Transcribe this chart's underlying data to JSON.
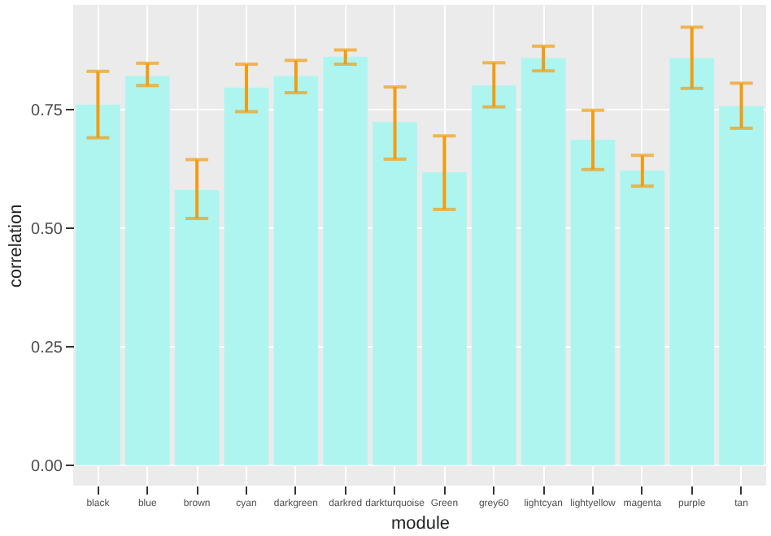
{
  "chart_data": {
    "type": "bar",
    "xlabel": "module",
    "ylabel": "correlation",
    "categories": [
      "black",
      "blue",
      "brown",
      "cyan",
      "darkgreen",
      "darkred",
      "darkturquoise",
      "Green",
      "grey60",
      "lightcyan",
      "lightyellow",
      "magenta",
      "purple",
      "tan"
    ],
    "values": [
      0.76,
      0.82,
      0.58,
      0.796,
      0.82,
      0.861,
      0.723,
      0.617,
      0.8,
      0.858,
      0.686,
      0.621,
      0.858,
      0.757
    ],
    "errors": [
      [
        0.69,
        0.83
      ],
      [
        0.8,
        0.847
      ],
      [
        0.52,
        0.644
      ],
      [
        0.745,
        0.845
      ],
      [
        0.785,
        0.853
      ],
      [
        0.845,
        0.875
      ],
      [
        0.645,
        0.797
      ],
      [
        0.539,
        0.694
      ],
      [
        0.755,
        0.848
      ],
      [
        0.831,
        0.883
      ],
      [
        0.623,
        0.748
      ],
      [
        0.588,
        0.653
      ],
      [
        0.794,
        0.923
      ],
      [
        0.71,
        0.805
      ]
    ],
    "color": "#aef5f0",
    "ylim": [
      -0.043,
      0.97
    ],
    "yticks": [
      {
        "value": 0,
        "label": "0.00"
      },
      0.25,
      {
        "value": 0.5,
        "label": "0.50"
      },
      0.75
    ],
    "grid": true
  }
}
